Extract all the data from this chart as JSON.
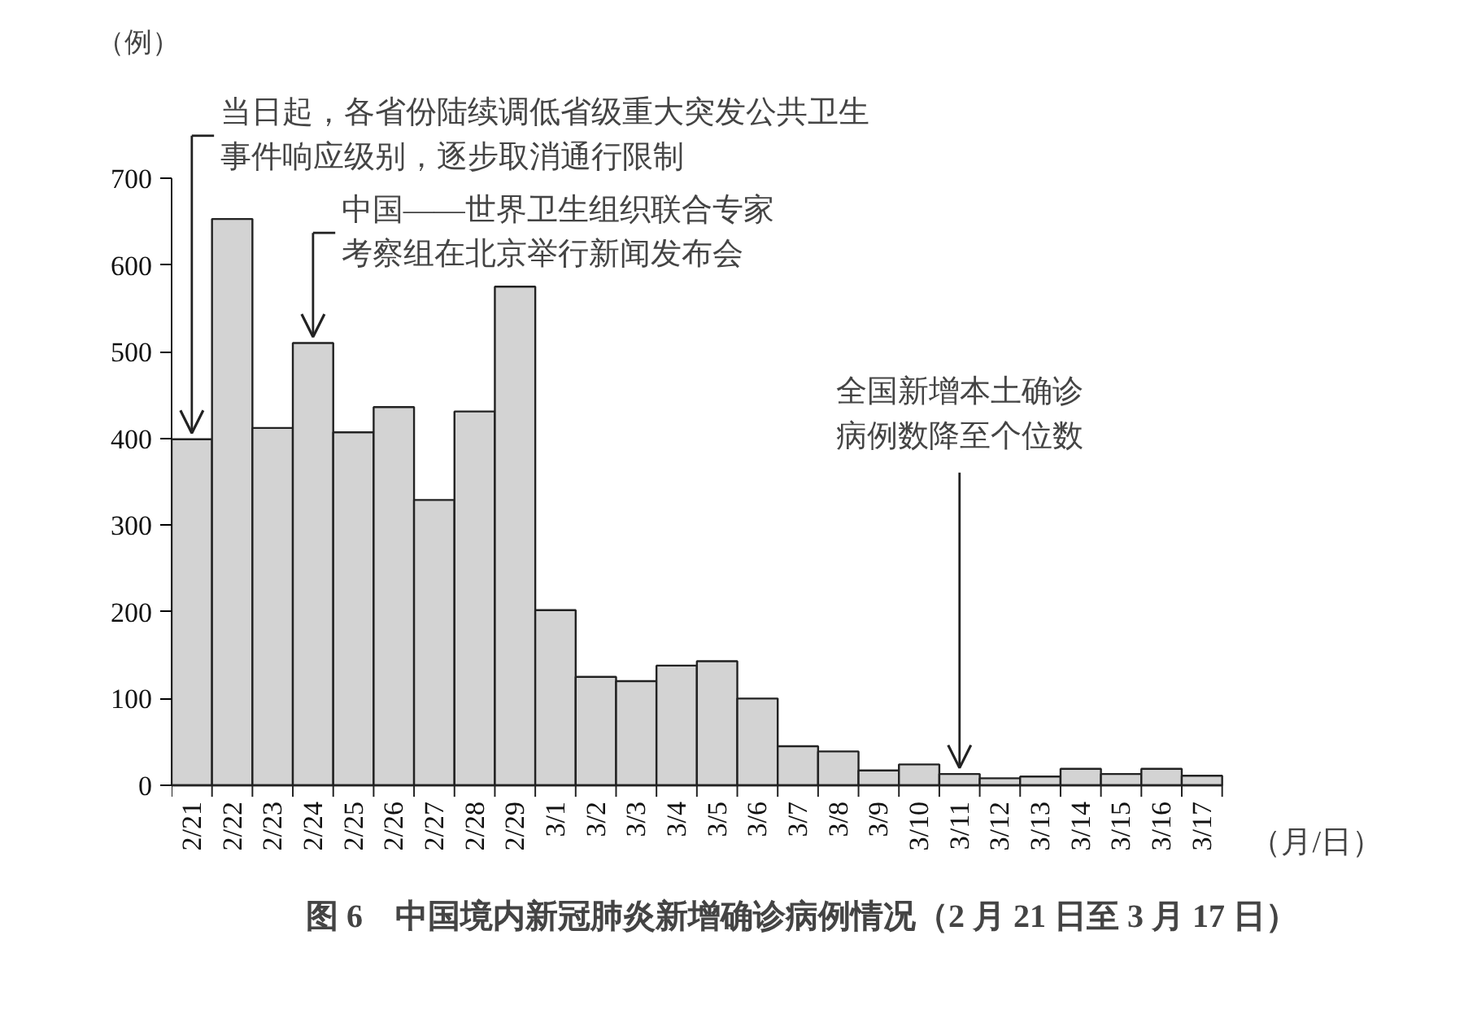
{
  "chart_data": {
    "type": "bar",
    "title": "图 6　中国境内新冠肺炎新增确诊病例情况（2 月 21 日至 3 月 17 日）",
    "xlabel": "（月/日）",
    "ylabel": "（例）",
    "categories": [
      "2/21",
      "2/22",
      "2/23",
      "2/24",
      "2/25",
      "2/26",
      "2/27",
      "2/28",
      "2/29",
      "3/1",
      "3/2",
      "3/3",
      "3/4",
      "3/5",
      "3/6",
      "3/7",
      "3/8",
      "3/9",
      "3/10",
      "3/11",
      "3/12",
      "3/13",
      "3/14",
      "3/15",
      "3/16",
      "3/17"
    ],
    "values": [
      399,
      653,
      412,
      510,
      407,
      436,
      329,
      431,
      575,
      202,
      125,
      120,
      138,
      143,
      100,
      45,
      39,
      17,
      24,
      13,
      8,
      10,
      19,
      13,
      19,
      11
    ],
    "color": "#d3d3d3",
    "ylim": [
      0,
      700
    ],
    "yticks": [
      0,
      100,
      200,
      300,
      400,
      500,
      600,
      700
    ],
    "grid": false,
    "annotations": [
      {
        "text": "当日起，各省份陆续调低省级重大突发公共卫生事件响应级别，逐步取消通行限制",
        "x": "2/21",
        "y": 399
      },
      {
        "text": "中国——世界卫生组织联合专家考察组在北京举行新闻发布会",
        "x": "2/24",
        "y": 510
      },
      {
        "text": "全国新增本土确诊病例数降至个位数",
        "x": "3/11",
        "y": 13
      }
    ]
  }
}
